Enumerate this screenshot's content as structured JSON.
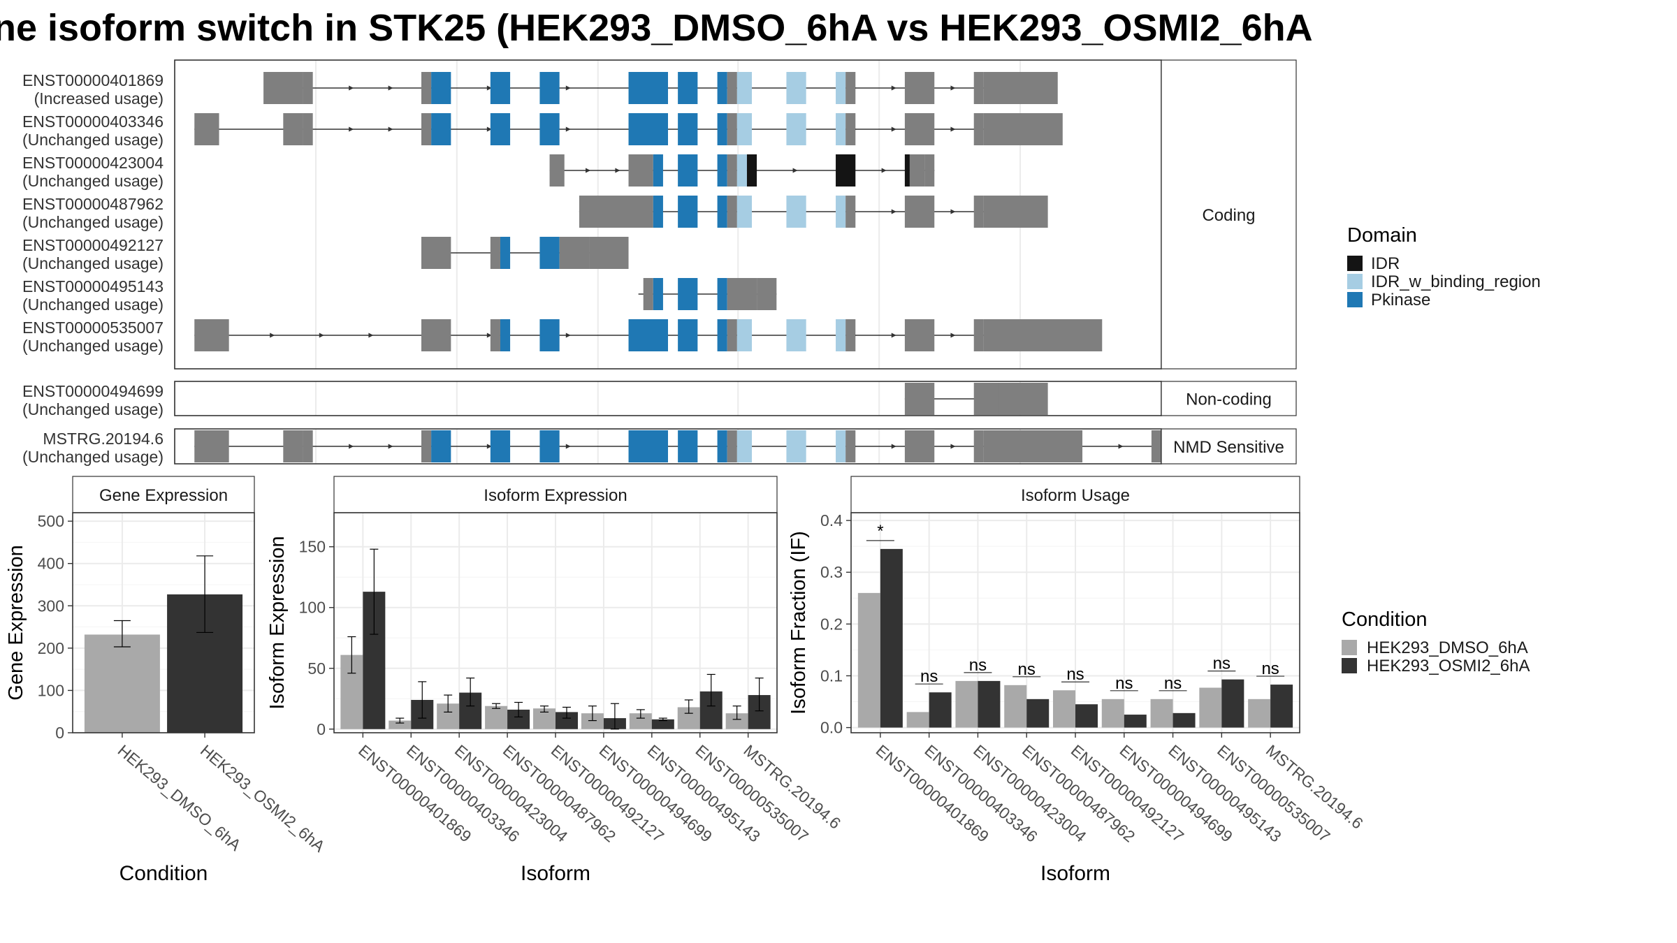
{
  "title": "ne isoform switch in STK25 (HEK293_DMSO_6hA vs HEK293_OSMI2_6hA",
  "colors": {
    "idr": "#141414",
    "idr_binding": "#a6cde3",
    "pkinase": "#1f78b4",
    "utr": "#7f7f7f",
    "dmso": "#a9a9a9",
    "osmi": "#333333",
    "grid": "#ebebeb"
  },
  "structure": {
    "x_range": [
      0,
      100
    ],
    "groups": [
      {
        "name": "coding",
        "label": "Coding",
        "isoforms": [
          {
            "id": "ENST00000401869",
            "usage": "(Increased usage)",
            "introns": [
              [
                10.5,
                84
              ]
            ],
            "arrows": [
              18,
              22,
              32,
              40,
              47,
              52,
              57,
              69,
              73,
              75,
              79
            ],
            "exons": [
              [
                9,
                13,
                "u"
              ],
              [
                13,
                14,
                "u"
              ],
              [
                25,
                26,
                "u"
              ],
              [
                26,
                28,
                "p"
              ],
              [
                32,
                34,
                "p"
              ],
              [
                37,
                39,
                "p"
              ],
              [
                46,
                50,
                "p"
              ],
              [
                51,
                53,
                "p"
              ],
              [
                55,
                56,
                "p"
              ],
              [
                56,
                57,
                "u"
              ],
              [
                57,
                58.5,
                "b"
              ],
              [
                62,
                64,
                "b"
              ],
              [
                67,
                68,
                "b"
              ],
              [
                68,
                69,
                "u"
              ],
              [
                74,
                77,
                "u"
              ],
              [
                81,
                82,
                "u"
              ],
              [
                82,
                89.5,
                "u"
              ]
            ]
          },
          {
            "id": "ENST00000403346",
            "usage": "(Unchanged usage)",
            "introns": [
              [
                2,
                89
              ]
            ],
            "arrows": [
              18,
              22,
              32,
              40,
              47,
              52,
              57,
              69,
              73,
              75,
              79
            ],
            "exons": [
              [
                2,
                4.5,
                "u"
              ],
              [
                11,
                13,
                "u"
              ],
              [
                13,
                14,
                "u"
              ],
              [
                25,
                26,
                "u"
              ],
              [
                26,
                28,
                "p"
              ],
              [
                32,
                34,
                "p"
              ],
              [
                37,
                39,
                "p"
              ],
              [
                46,
                50,
                "p"
              ],
              [
                51,
                53,
                "p"
              ],
              [
                55,
                56,
                "p"
              ],
              [
                56,
                57,
                "u"
              ],
              [
                57,
                58.5,
                "b"
              ],
              [
                62,
                64,
                "b"
              ],
              [
                67,
                68,
                "b"
              ],
              [
                68,
                69,
                "u"
              ],
              [
                74,
                77,
                "u"
              ],
              [
                81,
                82,
                "u"
              ],
              [
                82,
                90,
                "u"
              ]
            ]
          },
          {
            "id": "ENST00000423004",
            "usage": "(Unchanged usage)",
            "introns": [
              [
                38,
                77
              ]
            ],
            "arrows": [
              42,
              45,
              63,
              72
            ],
            "exons": [
              [
                38,
                39.5,
                "u"
              ],
              [
                46,
                48.5,
                "u"
              ],
              [
                48.5,
                49.5,
                "p"
              ],
              [
                51,
                53,
                "p"
              ],
              [
                55,
                56,
                "p"
              ],
              [
                56,
                57,
                "u"
              ],
              [
                57,
                58,
                "b"
              ],
              [
                58,
                59,
                "d"
              ],
              [
                67,
                69,
                "d"
              ],
              [
                74,
                74.5,
                "d"
              ],
              [
                74.5,
                76,
                "u"
              ],
              [
                76,
                77,
                "u"
              ]
            ]
          },
          {
            "id": "ENST00000487962",
            "usage": "(Unchanged usage)",
            "introns": [
              [
                41,
                88
              ]
            ],
            "arrows": [
              43,
              47,
              52,
              69,
              73,
              75,
              79
            ],
            "exons": [
              [
                41,
                48.5,
                "u"
              ],
              [
                48.5,
                49.5,
                "p"
              ],
              [
                51,
                53,
                "p"
              ],
              [
                55,
                56,
                "p"
              ],
              [
                56,
                57,
                "u"
              ],
              [
                57,
                58.5,
                "b"
              ],
              [
                62,
                64,
                "b"
              ],
              [
                67,
                68,
                "b"
              ],
              [
                68,
                69,
                "u"
              ],
              [
                74,
                77,
                "u"
              ],
              [
                81,
                82,
                "u"
              ],
              [
                82,
                88.5,
                "u"
              ]
            ]
          },
          {
            "id": "ENST00000492127",
            "usage": "(Unchanged usage)",
            "introns": [
              [
                25,
                45
              ]
            ],
            "arrows": [],
            "exons": [
              [
                25,
                28,
                "u"
              ],
              [
                32,
                33,
                "u"
              ],
              [
                33,
                34,
                "p"
              ],
              [
                37,
                39,
                "p"
              ],
              [
                39,
                42,
                "u"
              ],
              [
                42,
                46,
                "u"
              ]
            ]
          },
          {
            "id": "ENST00000495143",
            "usage": "(Unchanged usage)",
            "introns": [
              [
                47,
                61
              ]
            ],
            "arrows": [],
            "exons": [
              [
                47.5,
                48.5,
                "u"
              ],
              [
                48.5,
                49.5,
                "p"
              ],
              [
                51,
                53,
                "p"
              ],
              [
                55,
                56,
                "p"
              ],
              [
                56,
                59,
                "u"
              ],
              [
                59,
                61,
                "u"
              ]
            ]
          },
          {
            "id": "ENST00000535007",
            "usage": "(Unchanged usage)",
            "introns": [
              [
                2,
                93
              ]
            ],
            "arrows": [
              10,
              15,
              20,
              32,
              40,
              47,
              52,
              57,
              69,
              73,
              75,
              79
            ],
            "exons": [
              [
                2,
                5.5,
                "u"
              ],
              [
                25,
                28,
                "u"
              ],
              [
                32,
                33,
                "u"
              ],
              [
                33,
                34,
                "p"
              ],
              [
                37,
                39,
                "p"
              ],
              [
                46,
                50,
                "p"
              ],
              [
                51,
                53,
                "p"
              ],
              [
                55,
                56,
                "p"
              ],
              [
                56,
                57,
                "u"
              ],
              [
                57,
                58.5,
                "b"
              ],
              [
                62,
                64,
                "b"
              ],
              [
                67,
                68,
                "b"
              ],
              [
                68,
                69,
                "u"
              ],
              [
                74,
                77,
                "u"
              ],
              [
                81,
                82,
                "u"
              ],
              [
                82,
                94,
                "u"
              ]
            ]
          }
        ]
      },
      {
        "name": "noncoding",
        "label": "Non-coding",
        "isoforms": [
          {
            "id": "ENST00000494699",
            "usage": "(Unchanged usage)",
            "introns": [
              [
                74,
                88
              ]
            ],
            "arrows": [],
            "exons": [
              [
                74,
                77,
                "u"
              ],
              [
                81,
                88.5,
                "u"
              ],
              [
                83.5,
                85.5,
                "u"
              ]
            ]
          }
        ]
      },
      {
        "name": "nmd",
        "label": "NMD Sensitive",
        "isoforms": [
          {
            "id": "MSTRG.20194.6",
            "usage": "(Unchanged usage)",
            "introns": [
              [
                2,
                100
              ]
            ],
            "arrows": [
              18,
              22,
              32,
              40,
              47,
              52,
              57,
              69,
              73,
              75,
              79,
              96
            ],
            "exons": [
              [
                2,
                5.5,
                "u"
              ],
              [
                11,
                13,
                "u"
              ],
              [
                13,
                14,
                "u"
              ],
              [
                25,
                26,
                "u"
              ],
              [
                26,
                28,
                "p"
              ],
              [
                32,
                34,
                "p"
              ],
              [
                37,
                39,
                "p"
              ],
              [
                46,
                50,
                "p"
              ],
              [
                51,
                53,
                "p"
              ],
              [
                55,
                56,
                "p"
              ],
              [
                56,
                57,
                "u"
              ],
              [
                57,
                58.5,
                "b"
              ],
              [
                62,
                64,
                "b"
              ],
              [
                67,
                68,
                "b"
              ],
              [
                68,
                69,
                "u"
              ],
              [
                74,
                77,
                "u"
              ],
              [
                81,
                82,
                "u"
              ],
              [
                82,
                92,
                "u"
              ],
              [
                99,
                100,
                "u"
              ]
            ]
          }
        ]
      }
    ]
  },
  "legend_domain": {
    "title": "Domain",
    "items": [
      {
        "label": "IDR",
        "key": "idr"
      },
      {
        "label": "IDR_w_binding_region",
        "key": "idr_binding"
      },
      {
        "label": "Pkinase",
        "key": "pkinase"
      }
    ]
  },
  "legend_condition": {
    "title": "Condition",
    "items": [
      {
        "label": "HEK293_DMSO_6hA",
        "key": "dmso"
      },
      {
        "label": "HEK293_OSMI2_6hA",
        "key": "osmi"
      }
    ]
  },
  "chart_data": [
    {
      "type": "bar",
      "panel": "Gene Expression",
      "categories": [
        "HEK293_DMSO_6hA",
        "HEK293_OSMI2_6hA"
      ],
      "values": [
        232,
        327
      ],
      "errors": [
        [
          203,
          265
        ],
        [
          237,
          418
        ]
      ],
      "ylim": [
        0,
        520
      ],
      "yticks": [
        0,
        100,
        200,
        300,
        400,
        500
      ],
      "xlabel": "Condition",
      "ylabel": "Gene Expression"
    },
    {
      "type": "bar",
      "panel": "Isoform Expression",
      "categories": [
        "ENST00000401869",
        "ENST00000403346",
        "ENST00000423004",
        "ENST00000487962",
        "ENST00000492127",
        "ENST00000494699",
        "ENST00000495143",
        "ENST00000535007",
        "MSTRG.20194.6"
      ],
      "series": [
        {
          "name": "HEK293_DMSO_6hA",
          "values": [
            61,
            7,
            21,
            19,
            17,
            13,
            13,
            18,
            13
          ],
          "errors": [
            [
              46,
              76
            ],
            [
              5,
              9
            ],
            [
              14,
              28
            ],
            [
              17,
              21
            ],
            [
              14,
              19
            ],
            [
              7,
              19
            ],
            [
              9,
              16
            ],
            [
              13,
              24
            ],
            [
              8,
              19
            ]
          ]
        },
        {
          "name": "HEK293_OSMI2_6hA",
          "values": [
            113,
            24,
            30,
            16,
            14,
            9,
            8,
            31,
            28
          ],
          "errors": [
            [
              78,
              148
            ],
            [
              9,
              39
            ],
            [
              19,
              42
            ],
            [
              10,
              22
            ],
            [
              9,
              18
            ],
            [
              0,
              21
            ],
            [
              7,
              9
            ],
            [
              19,
              45
            ],
            [
              15,
              42
            ]
          ]
        }
      ],
      "ylim": [
        -3,
        178
      ],
      "yticks": [
        0,
        50,
        100,
        150
      ],
      "xlabel": "Isoform",
      "ylabel": "Isoform Expression"
    },
    {
      "type": "bar",
      "panel": "Isoform Usage",
      "categories": [
        "ENST00000401869",
        "ENST00000403346",
        "ENST00000423004",
        "ENST00000487962",
        "ENST00000492127",
        "ENST00000494699",
        "ENST00000495143",
        "ENST00000535007",
        "MSTRG.20194.6"
      ],
      "series": [
        {
          "name": "HEK293_DMSO_6hA",
          "values": [
            0.26,
            0.03,
            0.09,
            0.082,
            0.072,
            0.055,
            0.055,
            0.077,
            0.055
          ]
        },
        {
          "name": "HEK293_OSMI2_6hA",
          "values": [
            0.345,
            0.068,
            0.09,
            0.055,
            0.045,
            0.025,
            0.028,
            0.093,
            0.083
          ]
        }
      ],
      "significance": [
        "*",
        "ns",
        "ns",
        "ns",
        "ns",
        "ns",
        "ns",
        "ns",
        "ns"
      ],
      "ylim": [
        -0.01,
        0.415
      ],
      "yticks": [
        0.0,
        0.1,
        0.2,
        0.3,
        0.4
      ],
      "ytick_labels": [
        "0.0",
        "0.1",
        "0.2",
        "0.3",
        "0.4"
      ],
      "xlabel": "Isoform",
      "ylabel": "Isoform Fraction (IF)"
    }
  ]
}
